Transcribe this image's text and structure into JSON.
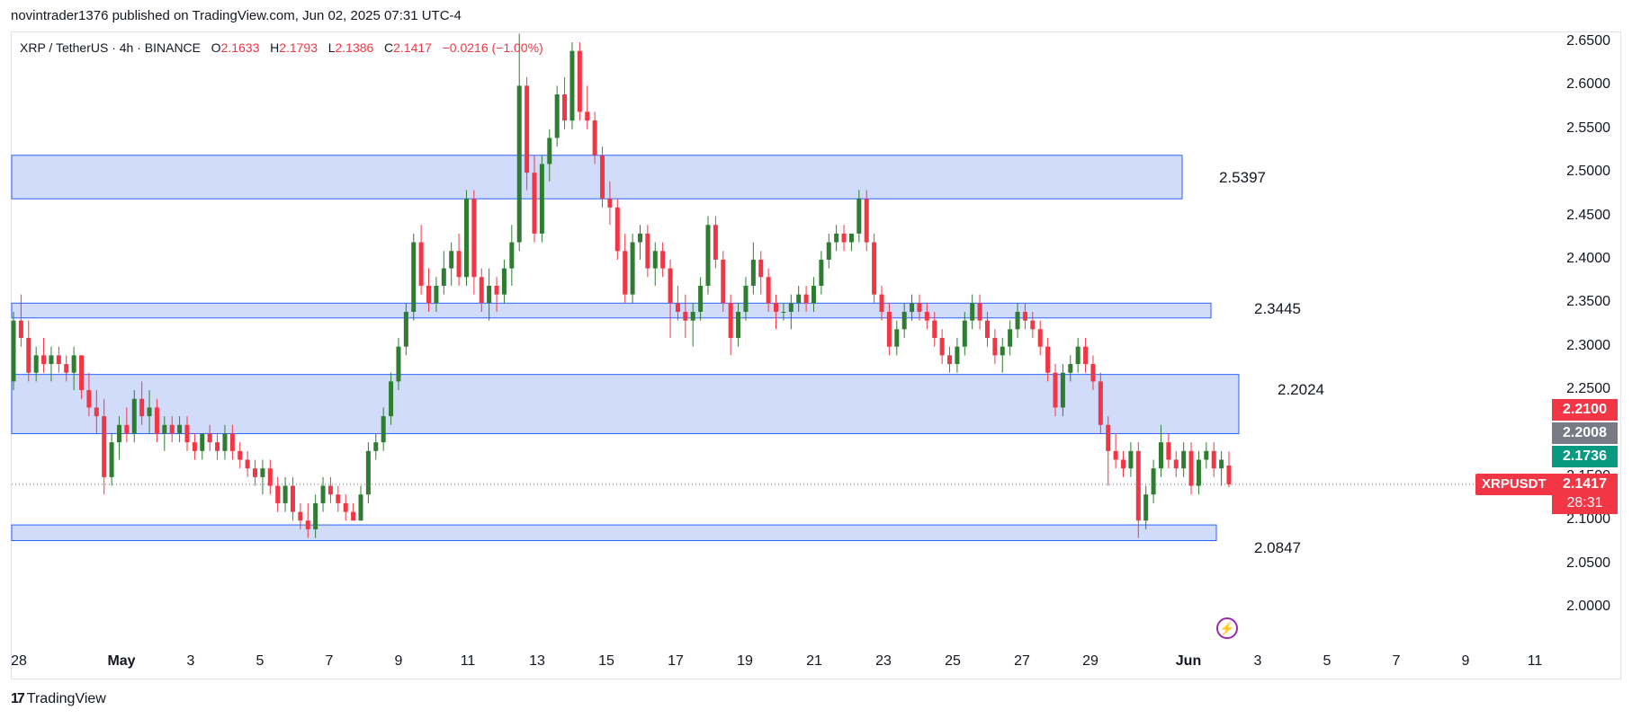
{
  "header": {
    "published": "novintrader1376 published on TradingView.com, Jun 02, 2025 07:31 UTC-4"
  },
  "legend": {
    "symbol": "XRP / TetherUS · 4h · BINANCE",
    "o_label": "O",
    "o": "2.1633",
    "h_label": "H",
    "h": "2.1793",
    "l_label": "L",
    "l": "2.1386",
    "c_label": "C",
    "c": "2.1417",
    "change": "−0.0216 (−1.00%)"
  },
  "footer": {
    "logo_text": "TradingView"
  },
  "price_tags": {
    "symbol": "XRPUSDT",
    "last_price": "2.1417",
    "countdown": "28:31",
    "tag_red": "2.2100",
    "tag_gray": "2.2008",
    "tag_green": "2.1736"
  },
  "colors": {
    "up": "#089981",
    "up_candle": "#2e7d32",
    "down": "#f23645",
    "zone_fill": "#d1dcfb",
    "zone_border": "#2962ff",
    "gray_tag": "#787b86"
  },
  "icons": {
    "flash": "lightning-icon"
  },
  "chart_data": {
    "type": "candlestick",
    "symbol": "XRP / TetherUS",
    "interval": "4h",
    "exchange": "BINANCE",
    "y_range": [
      1.96,
      2.66
    ],
    "y_ticks": [
      "2.0000",
      "2.0500",
      "2.1000",
      "2.1500",
      "2.2000",
      "2.2500",
      "2.3000",
      "2.3500",
      "2.4000",
      "2.4500",
      "2.5000",
      "2.5500",
      "2.6000",
      "2.6500"
    ],
    "x_ticks": [
      "28",
      "May",
      "3",
      "5",
      "7",
      "9",
      "11",
      "13",
      "15",
      "17",
      "19",
      "21",
      "23",
      "25",
      "27",
      "29",
      "Jun",
      "3",
      "5",
      "7",
      "9",
      "11"
    ],
    "zones": [
      {
        "label": "2.5397",
        "from": 2.47,
        "to": 2.52
      },
      {
        "label": "2.3445",
        "from": 2.333,
        "to": 2.35
      },
      {
        "label": "2.2024",
        "from": 2.2,
        "to": 2.268
      },
      {
        "label": "2.0847",
        "from": 2.077,
        "to": 2.095
      }
    ],
    "last_price": 2.1417,
    "ohlc": [
      [
        2.26,
        2.34,
        2.25,
        2.33
      ],
      [
        2.33,
        2.36,
        2.3,
        2.31
      ],
      [
        2.31,
        2.33,
        2.26,
        2.27
      ],
      [
        2.27,
        2.3,
        2.26,
        2.29
      ],
      [
        2.29,
        2.31,
        2.27,
        2.28
      ],
      [
        2.28,
        2.3,
        2.26,
        2.29
      ],
      [
        2.29,
        2.3,
        2.27,
        2.28
      ],
      [
        2.28,
        2.29,
        2.26,
        2.27
      ],
      [
        2.27,
        2.3,
        2.25,
        2.29
      ],
      [
        2.29,
        2.29,
        2.24,
        2.25
      ],
      [
        2.25,
        2.27,
        2.22,
        2.23
      ],
      [
        2.23,
        2.25,
        2.2,
        2.22
      ],
      [
        2.22,
        2.24,
        2.13,
        2.15
      ],
      [
        2.15,
        2.2,
        2.14,
        2.19
      ],
      [
        2.19,
        2.22,
        2.17,
        2.21
      ],
      [
        2.21,
        2.23,
        2.19,
        2.2
      ],
      [
        2.2,
        2.25,
        2.19,
        2.24
      ],
      [
        2.24,
        2.26,
        2.21,
        2.22
      ],
      [
        2.22,
        2.25,
        2.2,
        2.23
      ],
      [
        2.23,
        2.24,
        2.19,
        2.2
      ],
      [
        2.2,
        2.22,
        2.18,
        2.21
      ],
      [
        2.21,
        2.22,
        2.19,
        2.2
      ],
      [
        2.2,
        2.22,
        2.19,
        2.21
      ],
      [
        2.21,
        2.22,
        2.18,
        2.19
      ],
      [
        2.19,
        2.2,
        2.17,
        2.18
      ],
      [
        2.18,
        2.2,
        2.17,
        2.2
      ],
      [
        2.2,
        2.21,
        2.18,
        2.19
      ],
      [
        2.19,
        2.2,
        2.17,
        2.18
      ],
      [
        2.18,
        2.21,
        2.17,
        2.2
      ],
      [
        2.2,
        2.21,
        2.17,
        2.18
      ],
      [
        2.18,
        2.19,
        2.16,
        2.17
      ],
      [
        2.17,
        2.18,
        2.15,
        2.16
      ],
      [
        2.16,
        2.17,
        2.14,
        2.15
      ],
      [
        2.15,
        2.17,
        2.13,
        2.16
      ],
      [
        2.16,
        2.17,
        2.13,
        2.14
      ],
      [
        2.14,
        2.15,
        2.11,
        2.12
      ],
      [
        2.12,
        2.15,
        2.11,
        2.14
      ],
      [
        2.14,
        2.15,
        2.1,
        2.11
      ],
      [
        2.11,
        2.12,
        2.09,
        2.1
      ],
      [
        2.1,
        2.12,
        2.08,
        2.09
      ],
      [
        2.09,
        2.13,
        2.08,
        2.12
      ],
      [
        2.12,
        2.15,
        2.11,
        2.14
      ],
      [
        2.14,
        2.15,
        2.12,
        2.13
      ],
      [
        2.13,
        2.14,
        2.11,
        2.12
      ],
      [
        2.12,
        2.13,
        2.1,
        2.11
      ],
      [
        2.11,
        2.12,
        2.1,
        2.1
      ],
      [
        2.1,
        2.14,
        2.1,
        2.13
      ],
      [
        2.13,
        2.19,
        2.12,
        2.18
      ],
      [
        2.18,
        2.2,
        2.17,
        2.19
      ],
      [
        2.19,
        2.23,
        2.18,
        2.22
      ],
      [
        2.22,
        2.27,
        2.21,
        2.26
      ],
      [
        2.26,
        2.31,
        2.25,
        2.3
      ],
      [
        2.3,
        2.35,
        2.29,
        2.34
      ],
      [
        2.34,
        2.43,
        2.33,
        2.42
      ],
      [
        2.42,
        2.44,
        2.36,
        2.37
      ],
      [
        2.37,
        2.39,
        2.34,
        2.35
      ],
      [
        2.35,
        2.38,
        2.34,
        2.37
      ],
      [
        2.37,
        2.41,
        2.36,
        2.39
      ],
      [
        2.39,
        2.42,
        2.37,
        2.41
      ],
      [
        2.41,
        2.43,
        2.37,
        2.38
      ],
      [
        2.38,
        2.48,
        2.37,
        2.47
      ],
      [
        2.47,
        2.48,
        2.36,
        2.38
      ],
      [
        2.38,
        2.39,
        2.34,
        2.35
      ],
      [
        2.35,
        2.39,
        2.33,
        2.37
      ],
      [
        2.37,
        2.38,
        2.34,
        2.36
      ],
      [
        2.36,
        2.4,
        2.35,
        2.39
      ],
      [
        2.39,
        2.44,
        2.37,
        2.42
      ],
      [
        2.42,
        2.66,
        2.41,
        2.6
      ],
      [
        2.6,
        2.61,
        2.48,
        2.5
      ],
      [
        2.5,
        2.52,
        2.42,
        2.43
      ],
      [
        2.43,
        2.52,
        2.42,
        2.51
      ],
      [
        2.51,
        2.55,
        2.49,
        2.54
      ],
      [
        2.54,
        2.6,
        2.53,
        2.59
      ],
      [
        2.59,
        2.61,
        2.55,
        2.56
      ],
      [
        2.56,
        2.65,
        2.55,
        2.64
      ],
      [
        2.64,
        2.65,
        2.56,
        2.57
      ],
      [
        2.57,
        2.6,
        2.55,
        2.56
      ],
      [
        2.56,
        2.57,
        2.51,
        2.52
      ],
      [
        2.52,
        2.53,
        2.46,
        2.47
      ],
      [
        2.47,
        2.49,
        2.44,
        2.46
      ],
      [
        2.46,
        2.47,
        2.4,
        2.41
      ],
      [
        2.41,
        2.43,
        2.35,
        2.36
      ],
      [
        2.36,
        2.43,
        2.35,
        2.42
      ],
      [
        2.42,
        2.44,
        2.4,
        2.43
      ],
      [
        2.43,
        2.44,
        2.38,
        2.39
      ],
      [
        2.39,
        2.42,
        2.37,
        2.41
      ],
      [
        2.41,
        2.42,
        2.38,
        2.39
      ],
      [
        2.39,
        2.4,
        2.31,
        2.35
      ],
      [
        2.35,
        2.37,
        2.33,
        2.34
      ],
      [
        2.34,
        2.36,
        2.31,
        2.33
      ],
      [
        2.33,
        2.35,
        2.3,
        2.34
      ],
      [
        2.34,
        2.38,
        2.33,
        2.37
      ],
      [
        2.37,
        2.45,
        2.36,
        2.44
      ],
      [
        2.44,
        2.45,
        2.39,
        2.4
      ],
      [
        2.4,
        2.41,
        2.34,
        2.35
      ],
      [
        2.35,
        2.36,
        2.29,
        2.31
      ],
      [
        2.31,
        2.35,
        2.3,
        2.34
      ],
      [
        2.34,
        2.38,
        2.33,
        2.37
      ],
      [
        2.37,
        2.42,
        2.36,
        2.4
      ],
      [
        2.4,
        2.41,
        2.36,
        2.38
      ],
      [
        2.38,
        2.39,
        2.34,
        2.35
      ],
      [
        2.35,
        2.36,
        2.32,
        2.34
      ],
      [
        2.34,
        2.35,
        2.33,
        2.34
      ],
      [
        2.34,
        2.36,
        2.32,
        2.35
      ],
      [
        2.35,
        2.37,
        2.34,
        2.36
      ],
      [
        2.36,
        2.37,
        2.34,
        2.35
      ],
      [
        2.35,
        2.38,
        2.34,
        2.37
      ],
      [
        2.37,
        2.41,
        2.36,
        2.4
      ],
      [
        2.4,
        2.43,
        2.39,
        2.42
      ],
      [
        2.42,
        2.44,
        2.41,
        2.43
      ],
      [
        2.43,
        2.44,
        2.41,
        2.42
      ],
      [
        2.42,
        2.43,
        2.41,
        2.43
      ],
      [
        2.43,
        2.48,
        2.42,
        2.47
      ],
      [
        2.47,
        2.48,
        2.41,
        2.42
      ],
      [
        2.42,
        2.43,
        2.35,
        2.36
      ],
      [
        2.36,
        2.37,
        2.33,
        2.34
      ],
      [
        2.34,
        2.35,
        2.29,
        2.3
      ],
      [
        2.3,
        2.33,
        2.29,
        2.32
      ],
      [
        2.32,
        2.35,
        2.31,
        2.34
      ],
      [
        2.34,
        2.36,
        2.33,
        2.35
      ],
      [
        2.35,
        2.36,
        2.33,
        2.34
      ],
      [
        2.34,
        2.35,
        2.32,
        2.33
      ],
      [
        2.33,
        2.34,
        2.3,
        2.31
      ],
      [
        2.31,
        2.32,
        2.28,
        2.29
      ],
      [
        2.29,
        2.3,
        2.27,
        2.28
      ],
      [
        2.28,
        2.31,
        2.27,
        2.3
      ],
      [
        2.3,
        2.34,
        2.29,
        2.33
      ],
      [
        2.33,
        2.36,
        2.32,
        2.35
      ],
      [
        2.35,
        2.36,
        2.32,
        2.33
      ],
      [
        2.33,
        2.34,
        2.3,
        2.31
      ],
      [
        2.31,
        2.32,
        2.28,
        2.29
      ],
      [
        2.29,
        2.31,
        2.27,
        2.3
      ],
      [
        2.3,
        2.33,
        2.29,
        2.32
      ],
      [
        2.32,
        2.35,
        2.31,
        2.34
      ],
      [
        2.34,
        2.35,
        2.32,
        2.33
      ],
      [
        2.33,
        2.34,
        2.31,
        2.32
      ],
      [
        2.32,
        2.33,
        2.29,
        2.3
      ],
      [
        2.3,
        2.31,
        2.26,
        2.27
      ],
      [
        2.27,
        2.28,
        2.22,
        2.23
      ],
      [
        2.23,
        2.28,
        2.22,
        2.27
      ],
      [
        2.27,
        2.29,
        2.26,
        2.28
      ],
      [
        2.28,
        2.31,
        2.27,
        2.3
      ],
      [
        2.3,
        2.31,
        2.27,
        2.28
      ],
      [
        2.28,
        2.29,
        2.25,
        2.26
      ],
      [
        2.26,
        2.27,
        2.2,
        2.21
      ],
      [
        2.21,
        2.22,
        2.14,
        2.18
      ],
      [
        2.18,
        2.2,
        2.16,
        2.17
      ],
      [
        2.17,
        2.18,
        2.15,
        2.16
      ],
      [
        2.16,
        2.19,
        2.15,
        2.18
      ],
      [
        2.18,
        2.19,
        2.08,
        2.1
      ],
      [
        2.1,
        2.14,
        2.09,
        2.13
      ],
      [
        2.13,
        2.17,
        2.12,
        2.16
      ],
      [
        2.16,
        2.21,
        2.15,
        2.19
      ],
      [
        2.19,
        2.2,
        2.16,
        2.17
      ],
      [
        2.17,
        2.18,
        2.15,
        2.16
      ],
      [
        2.16,
        2.19,
        2.15,
        2.18
      ],
      [
        2.18,
        2.19,
        2.13,
        2.14
      ],
      [
        2.14,
        2.18,
        2.13,
        2.17
      ],
      [
        2.17,
        2.19,
        2.16,
        2.18
      ],
      [
        2.18,
        2.19,
        2.15,
        2.16
      ],
      [
        2.16,
        2.18,
        2.14,
        2.17
      ],
      [
        2.1633,
        2.1793,
        2.1386,
        2.1417
      ]
    ]
  }
}
